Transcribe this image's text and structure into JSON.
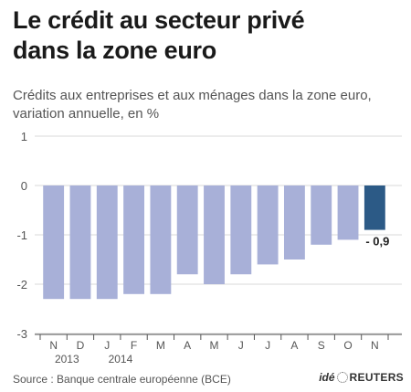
{
  "header": {
    "title_line1": "Le crédit au secteur privé",
    "title_line2": "dans la zone euro",
    "subtitle_line1": "Crédits aux entreprises et aux ménages dans la zone euro,",
    "subtitle_line2": "variation annuelle, en %"
  },
  "footer": {
    "source": "Source : Banque centrale européenne (BCE)",
    "logo_ide": "idé",
    "logo_reuters": "REUTERS"
  },
  "colors": {
    "bar": "#a8b0d8",
    "bar_highlight": "#2c5a86",
    "grid": "#d8d8d8",
    "axis": "#555555"
  },
  "chart_data": {
    "type": "bar",
    "categories": [
      "N",
      "D",
      "J",
      "F",
      "M",
      "A",
      "M",
      "J",
      "J",
      "A",
      "S",
      "O",
      "N"
    ],
    "year_labels": [
      {
        "label": "2013",
        "under_index": 0.5
      },
      {
        "label": "2014",
        "under_index": 2.5
      }
    ],
    "values": [
      -2.3,
      -2.3,
      -2.3,
      -2.2,
      -2.2,
      -1.8,
      -2.0,
      -1.8,
      -1.6,
      -1.5,
      -1.2,
      -1.1,
      -0.9
    ],
    "highlight_index": 12,
    "data_labels": [
      {
        "index": 12,
        "text": "- 0,9"
      }
    ],
    "yticks": [
      1,
      0,
      -1,
      -2,
      -3
    ],
    "ylim": [
      -3,
      1
    ],
    "grid": true
  }
}
